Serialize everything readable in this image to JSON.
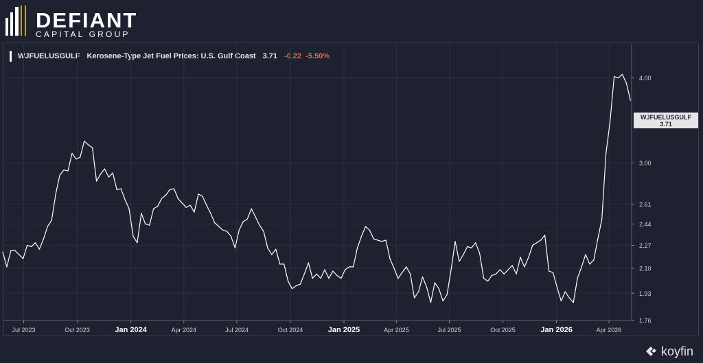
{
  "brand": {
    "name": "DEFIANT",
    "subtitle": "CAPITAL GROUP"
  },
  "legend": {
    "ticker": "WJFUELUSGULF",
    "description": "Kerosene-Type Jet Fuel Prices: U.S. Gulf Coast",
    "last": "3.71",
    "change": "-0.22",
    "change_pct": "-5.50%",
    "line_color": "#ffffff",
    "negative_color": "#f0605a"
  },
  "price_tag": {
    "ticker": "WJFUELUSGULF",
    "value": "3.71"
  },
  "footer": {
    "logo_text": "koyfin"
  },
  "chart_data": {
    "type": "line",
    "title": "",
    "xlabel": "",
    "ylabel": "",
    "y_scale": "log",
    "ylim": [
      1.76,
      4.5
    ],
    "xlim": [
      "2023-05-26",
      "2026-05-10"
    ],
    "y_ticks": [
      "1.76",
      "1.93",
      "2.10",
      "2.27",
      "2.44",
      "2.61",
      "3.00",
      "4.00"
    ],
    "x_ticks": [
      {
        "label": "Jul 2023",
        "date": "2023-07-01",
        "bold": false
      },
      {
        "label": "Oct 2023",
        "date": "2023-10-01",
        "bold": false
      },
      {
        "label": "Jan 2024",
        "date": "2024-01-01",
        "bold": true
      },
      {
        "label": "Apr 2024",
        "date": "2024-04-01",
        "bold": false
      },
      {
        "label": "Jul 2024",
        "date": "2024-07-01",
        "bold": false
      },
      {
        "label": "Oct 2024",
        "date": "2024-10-01",
        "bold": false
      },
      {
        "label": "Jan 2025",
        "date": "2025-01-01",
        "bold": true
      },
      {
        "label": "Apr 2025",
        "date": "2025-04-01",
        "bold": false
      },
      {
        "label": "Jul 2025",
        "date": "2025-07-01",
        "bold": false
      },
      {
        "label": "Oct 2025",
        "date": "2025-10-01",
        "bold": false
      },
      {
        "label": "Jan 2026",
        "date": "2026-01-01",
        "bold": true
      },
      {
        "label": "Apr 2026",
        "date": "2026-04-01",
        "bold": false
      }
    ],
    "grid": true,
    "series": [
      {
        "name": "WJFUELUSGULF",
        "color": "#ffffff",
        "points": [
          [
            "2023-05-26",
            2.22
          ],
          [
            "2023-06-02",
            2.11
          ],
          [
            "2023-06-09",
            2.23
          ],
          [
            "2023-06-16",
            2.23
          ],
          [
            "2023-06-23",
            2.2
          ],
          [
            "2023-06-30",
            2.17
          ],
          [
            "2023-07-07",
            2.27
          ],
          [
            "2023-07-14",
            2.26
          ],
          [
            "2023-07-21",
            2.29
          ],
          [
            "2023-07-28",
            2.24
          ],
          [
            "2023-08-04",
            2.32
          ],
          [
            "2023-08-11",
            2.42
          ],
          [
            "2023-08-18",
            2.47
          ],
          [
            "2023-08-25",
            2.7
          ],
          [
            "2023-09-01",
            2.88
          ],
          [
            "2023-09-08",
            2.93
          ],
          [
            "2023-09-15",
            2.92
          ],
          [
            "2023-09-22",
            3.1
          ],
          [
            "2023-09-29",
            3.04
          ],
          [
            "2023-10-06",
            3.06
          ],
          [
            "2023-10-13",
            3.23
          ],
          [
            "2023-10-20",
            3.19
          ],
          [
            "2023-10-27",
            3.16
          ],
          [
            "2023-11-03",
            2.82
          ],
          [
            "2023-11-10",
            2.89
          ],
          [
            "2023-11-17",
            2.94
          ],
          [
            "2023-11-24",
            2.86
          ],
          [
            "2023-12-01",
            2.9
          ],
          [
            "2023-12-08",
            2.74
          ],
          [
            "2023-12-15",
            2.75
          ],
          [
            "2023-12-22",
            2.65
          ],
          [
            "2023-12-29",
            2.57
          ],
          [
            "2024-01-05",
            2.34
          ],
          [
            "2024-01-12",
            2.29
          ],
          [
            "2024-01-19",
            2.53
          ],
          [
            "2024-01-26",
            2.44
          ],
          [
            "2024-02-02",
            2.43
          ],
          [
            "2024-02-09",
            2.57
          ],
          [
            "2024-02-16",
            2.59
          ],
          [
            "2024-02-23",
            2.66
          ],
          [
            "2024-03-01",
            2.69
          ],
          [
            "2024-03-08",
            2.74
          ],
          [
            "2024-03-15",
            2.75
          ],
          [
            "2024-03-22",
            2.66
          ],
          [
            "2024-03-29",
            2.62
          ],
          [
            "2024-04-05",
            2.58
          ],
          [
            "2024-04-12",
            2.6
          ],
          [
            "2024-04-19",
            2.54
          ],
          [
            "2024-04-26",
            2.7
          ],
          [
            "2024-05-03",
            2.68
          ],
          [
            "2024-05-10",
            2.6
          ],
          [
            "2024-05-17",
            2.53
          ],
          [
            "2024-05-24",
            2.45
          ],
          [
            "2024-05-31",
            2.42
          ],
          [
            "2024-06-07",
            2.39
          ],
          [
            "2024-06-14",
            2.38
          ],
          [
            "2024-06-21",
            2.34
          ],
          [
            "2024-06-28",
            2.25
          ],
          [
            "2024-07-05",
            2.39
          ],
          [
            "2024-07-12",
            2.46
          ],
          [
            "2024-07-19",
            2.48
          ],
          [
            "2024-07-26",
            2.57
          ],
          [
            "2024-08-02",
            2.5
          ],
          [
            "2024-08-09",
            2.43
          ],
          [
            "2024-08-16",
            2.38
          ],
          [
            "2024-08-23",
            2.25
          ],
          [
            "2024-08-30",
            2.2
          ],
          [
            "2024-09-06",
            2.24
          ],
          [
            "2024-09-13",
            2.13
          ],
          [
            "2024-09-20",
            2.13
          ],
          [
            "2024-09-27",
            2.01
          ],
          [
            "2024-10-04",
            1.96
          ],
          [
            "2024-10-11",
            1.98
          ],
          [
            "2024-10-18",
            1.99
          ],
          [
            "2024-10-25",
            2.06
          ],
          [
            "2024-11-01",
            2.14
          ],
          [
            "2024-11-08",
            2.03
          ],
          [
            "2024-11-15",
            2.06
          ],
          [
            "2024-11-22",
            2.03
          ],
          [
            "2024-11-29",
            2.09
          ],
          [
            "2024-12-06",
            2.03
          ],
          [
            "2024-12-13",
            2.08
          ],
          [
            "2024-12-20",
            2.05
          ],
          [
            "2024-12-27",
            2.03
          ],
          [
            "2025-01-03",
            2.09
          ],
          [
            "2025-01-10",
            2.11
          ],
          [
            "2025-01-17",
            2.11
          ],
          [
            "2025-01-24",
            2.25
          ],
          [
            "2025-01-31",
            2.34
          ],
          [
            "2025-02-07",
            2.42
          ],
          [
            "2025-02-14",
            2.39
          ],
          [
            "2025-02-21",
            2.32
          ],
          [
            "2025-02-28",
            2.31
          ],
          [
            "2025-03-07",
            2.3
          ],
          [
            "2025-03-14",
            2.31
          ],
          [
            "2025-03-21",
            2.17
          ],
          [
            "2025-03-28",
            2.1
          ],
          [
            "2025-04-04",
            2.03
          ],
          [
            "2025-04-11",
            2.07
          ],
          [
            "2025-04-18",
            2.11
          ],
          [
            "2025-04-25",
            2.06
          ],
          [
            "2025-05-02",
            1.9
          ],
          [
            "2025-05-09",
            1.94
          ],
          [
            "2025-05-16",
            2.04
          ],
          [
            "2025-05-23",
            1.97
          ],
          [
            "2025-05-30",
            1.87
          ],
          [
            "2025-06-06",
            2.0
          ],
          [
            "2025-06-13",
            1.96
          ],
          [
            "2025-06-20",
            1.88
          ],
          [
            "2025-06-27",
            1.92
          ],
          [
            "2025-07-04",
            2.09
          ],
          [
            "2025-07-11",
            2.3
          ],
          [
            "2025-07-18",
            2.15
          ],
          [
            "2025-07-25",
            2.2
          ],
          [
            "2025-08-01",
            2.26
          ],
          [
            "2025-08-08",
            2.25
          ],
          [
            "2025-08-15",
            2.29
          ],
          [
            "2025-08-22",
            2.21
          ],
          [
            "2025-08-29",
            2.03
          ],
          [
            "2025-09-05",
            2.01
          ],
          [
            "2025-09-12",
            2.05
          ],
          [
            "2025-09-19",
            2.06
          ],
          [
            "2025-09-26",
            2.09
          ],
          [
            "2025-10-03",
            2.06
          ],
          [
            "2025-10-10",
            2.09
          ],
          [
            "2025-10-17",
            2.12
          ],
          [
            "2025-10-24",
            2.06
          ],
          [
            "2025-10-31",
            2.18
          ],
          [
            "2025-11-07",
            2.11
          ],
          [
            "2025-11-14",
            2.18
          ],
          [
            "2025-11-21",
            2.27
          ],
          [
            "2025-11-28",
            2.29
          ],
          [
            "2025-12-05",
            2.31
          ],
          [
            "2025-12-12",
            2.35
          ],
          [
            "2025-12-19",
            2.08
          ],
          [
            "2025-12-26",
            2.07
          ],
          [
            "2026-01-02",
            1.97
          ],
          [
            "2026-01-09",
            1.88
          ],
          [
            "2026-01-16",
            1.94
          ],
          [
            "2026-01-23",
            1.9
          ],
          [
            "2026-01-30",
            1.87
          ],
          [
            "2026-02-06",
            2.03
          ],
          [
            "2026-02-13",
            2.11
          ],
          [
            "2026-02-20",
            2.2
          ],
          [
            "2026-02-27",
            2.13
          ],
          [
            "2026-03-06",
            2.16
          ],
          [
            "2026-03-13",
            2.32
          ],
          [
            "2026-03-20",
            2.48
          ],
          [
            "2026-03-27",
            3.1
          ],
          [
            "2026-04-03",
            3.45
          ],
          [
            "2026-04-10",
            4.02
          ],
          [
            "2026-04-17",
            4.0
          ],
          [
            "2026-04-24",
            4.05
          ],
          [
            "2026-05-01",
            3.93
          ],
          [
            "2026-05-08",
            3.71
          ]
        ]
      }
    ]
  }
}
